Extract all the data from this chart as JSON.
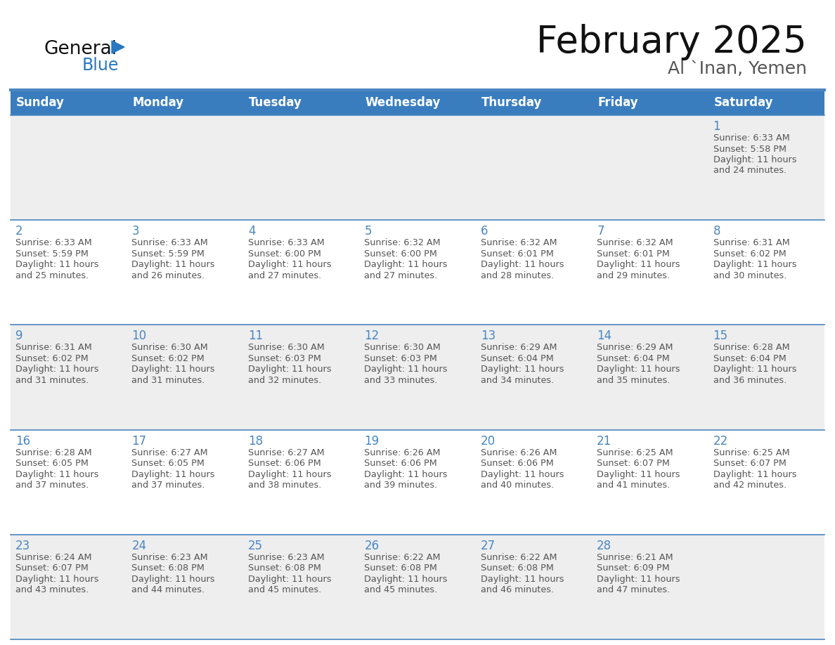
{
  "title": "February 2025",
  "subtitle": "Al `Inan, Yemen",
  "days_of_week": [
    "Sunday",
    "Monday",
    "Tuesday",
    "Wednesday",
    "Thursday",
    "Friday",
    "Saturday"
  ],
  "header_bg": "#3a7dbf",
  "header_text": "#ffffff",
  "cell_bg_grey": "#eeeeee",
  "cell_bg_white": "#ffffff",
  "row_border_color": "#4a86c0",
  "day_number_color": "#4a86c0",
  "text_color": "#555555",
  "logo_general_color": "#111111",
  "logo_blue_color": "#2878c0",
  "calendar_data": [
    [
      null,
      null,
      null,
      null,
      null,
      null,
      {
        "day": 1,
        "sunrise": "6:33 AM",
        "sunset": "5:58 PM",
        "daylight": "11 hours",
        "daylight2": "and 24 minutes."
      }
    ],
    [
      {
        "day": 2,
        "sunrise": "6:33 AM",
        "sunset": "5:59 PM",
        "daylight": "11 hours",
        "daylight2": "and 25 minutes."
      },
      {
        "day": 3,
        "sunrise": "6:33 AM",
        "sunset": "5:59 PM",
        "daylight": "11 hours",
        "daylight2": "and 26 minutes."
      },
      {
        "day": 4,
        "sunrise": "6:33 AM",
        "sunset": "6:00 PM",
        "daylight": "11 hours",
        "daylight2": "and 27 minutes."
      },
      {
        "day": 5,
        "sunrise": "6:32 AM",
        "sunset": "6:00 PM",
        "daylight": "11 hours",
        "daylight2": "and 27 minutes."
      },
      {
        "day": 6,
        "sunrise": "6:32 AM",
        "sunset": "6:01 PM",
        "daylight": "11 hours",
        "daylight2": "and 28 minutes."
      },
      {
        "day": 7,
        "sunrise": "6:32 AM",
        "sunset": "6:01 PM",
        "daylight": "11 hours",
        "daylight2": "and 29 minutes."
      },
      {
        "day": 8,
        "sunrise": "6:31 AM",
        "sunset": "6:02 PM",
        "daylight": "11 hours",
        "daylight2": "and 30 minutes."
      }
    ],
    [
      {
        "day": 9,
        "sunrise": "6:31 AM",
        "sunset": "6:02 PM",
        "daylight": "11 hours",
        "daylight2": "and 31 minutes."
      },
      {
        "day": 10,
        "sunrise": "6:30 AM",
        "sunset": "6:02 PM",
        "daylight": "11 hours",
        "daylight2": "and 31 minutes."
      },
      {
        "day": 11,
        "sunrise": "6:30 AM",
        "sunset": "6:03 PM",
        "daylight": "11 hours",
        "daylight2": "and 32 minutes."
      },
      {
        "day": 12,
        "sunrise": "6:30 AM",
        "sunset": "6:03 PM",
        "daylight": "11 hours",
        "daylight2": "and 33 minutes."
      },
      {
        "day": 13,
        "sunrise": "6:29 AM",
        "sunset": "6:04 PM",
        "daylight": "11 hours",
        "daylight2": "and 34 minutes."
      },
      {
        "day": 14,
        "sunrise": "6:29 AM",
        "sunset": "6:04 PM",
        "daylight": "11 hours",
        "daylight2": "and 35 minutes."
      },
      {
        "day": 15,
        "sunrise": "6:28 AM",
        "sunset": "6:04 PM",
        "daylight": "11 hours",
        "daylight2": "and 36 minutes."
      }
    ],
    [
      {
        "day": 16,
        "sunrise": "6:28 AM",
        "sunset": "6:05 PM",
        "daylight": "11 hours",
        "daylight2": "and 37 minutes."
      },
      {
        "day": 17,
        "sunrise": "6:27 AM",
        "sunset": "6:05 PM",
        "daylight": "11 hours",
        "daylight2": "and 37 minutes."
      },
      {
        "day": 18,
        "sunrise": "6:27 AM",
        "sunset": "6:06 PM",
        "daylight": "11 hours",
        "daylight2": "and 38 minutes."
      },
      {
        "day": 19,
        "sunrise": "6:26 AM",
        "sunset": "6:06 PM",
        "daylight": "11 hours",
        "daylight2": "and 39 minutes."
      },
      {
        "day": 20,
        "sunrise": "6:26 AM",
        "sunset": "6:06 PM",
        "daylight": "11 hours",
        "daylight2": "and 40 minutes."
      },
      {
        "day": 21,
        "sunrise": "6:25 AM",
        "sunset": "6:07 PM",
        "daylight": "11 hours",
        "daylight2": "and 41 minutes."
      },
      {
        "day": 22,
        "sunrise": "6:25 AM",
        "sunset": "6:07 PM",
        "daylight": "11 hours",
        "daylight2": "and 42 minutes."
      }
    ],
    [
      {
        "day": 23,
        "sunrise": "6:24 AM",
        "sunset": "6:07 PM",
        "daylight": "11 hours",
        "daylight2": "and 43 minutes."
      },
      {
        "day": 24,
        "sunrise": "6:23 AM",
        "sunset": "6:08 PM",
        "daylight": "11 hours",
        "daylight2": "and 44 minutes."
      },
      {
        "day": 25,
        "sunrise": "6:23 AM",
        "sunset": "6:08 PM",
        "daylight": "11 hours",
        "daylight2": "and 45 minutes."
      },
      {
        "day": 26,
        "sunrise": "6:22 AM",
        "sunset": "6:08 PM",
        "daylight": "11 hours",
        "daylight2": "and 45 minutes."
      },
      {
        "day": 27,
        "sunrise": "6:22 AM",
        "sunset": "6:08 PM",
        "daylight": "11 hours",
        "daylight2": "and 46 minutes."
      },
      {
        "day": 28,
        "sunrise": "6:21 AM",
        "sunset": "6:09 PM",
        "daylight": "11 hours",
        "daylight2": "and 47 minutes."
      },
      null
    ]
  ]
}
